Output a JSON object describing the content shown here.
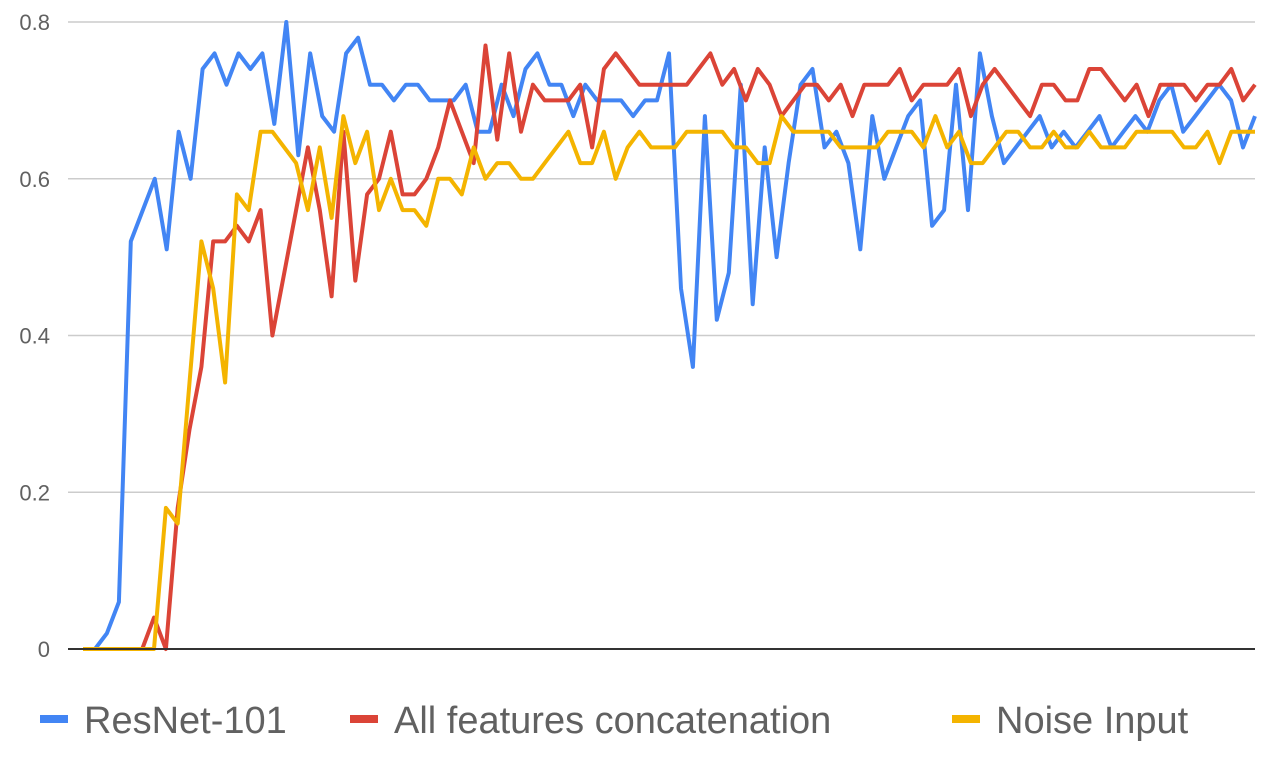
{
  "chart_data": {
    "type": "line",
    "title": "",
    "xlabel": "",
    "ylabel": "",
    "ylim": [
      0,
      0.8
    ],
    "yticks": [
      "0",
      "0.2",
      "0.4",
      "0.6",
      "0.8"
    ],
    "grid": true,
    "legend_position": "bottom",
    "series": [
      {
        "name": "ResNet-101",
        "color": "#4285F4",
        "values": [
          0,
          0,
          0.02,
          0.06,
          0.52,
          0.56,
          0.6,
          0.51,
          0.66,
          0.6,
          0.74,
          0.76,
          0.72,
          0.76,
          0.74,
          0.76,
          0.67,
          0.8,
          0.63,
          0.76,
          0.68,
          0.66,
          0.76,
          0.78,
          0.72,
          0.72,
          0.7,
          0.72,
          0.72,
          0.7,
          0.7,
          0.7,
          0.72,
          0.66,
          0.66,
          0.72,
          0.68,
          0.74,
          0.76,
          0.72,
          0.72,
          0.68,
          0.72,
          0.7,
          0.7,
          0.7,
          0.68,
          0.7,
          0.7,
          0.76,
          0.46,
          0.36,
          0.68,
          0.42,
          0.48,
          0.72,
          0.44,
          0.64,
          0.5,
          0.62,
          0.72,
          0.74,
          0.64,
          0.66,
          0.62,
          0.51,
          0.68,
          0.6,
          0.64,
          0.68,
          0.7,
          0.54,
          0.56,
          0.72,
          0.56,
          0.76,
          0.68,
          0.62,
          0.64,
          0.66,
          0.68,
          0.64,
          0.66,
          0.64,
          0.66,
          0.68,
          0.64,
          0.66,
          0.68,
          0.66,
          0.7,
          0.72,
          0.66,
          0.68,
          0.7,
          0.72,
          0.7,
          0.64,
          0.68
        ]
      },
      {
        "name": "All features concatenation",
        "color": "#DB4437",
        "values": [
          0,
          0,
          0,
          0,
          0,
          0,
          0.04,
          0,
          0.18,
          0.28,
          0.36,
          0.52,
          0.52,
          0.54,
          0.52,
          0.56,
          0.4,
          0.48,
          0.56,
          0.64,
          0.56,
          0.45,
          0.66,
          0.47,
          0.58,
          0.6,
          0.66,
          0.58,
          0.58,
          0.6,
          0.64,
          0.7,
          0.66,
          0.62,
          0.77,
          0.65,
          0.76,
          0.66,
          0.72,
          0.7,
          0.7,
          0.7,
          0.72,
          0.64,
          0.74,
          0.76,
          0.74,
          0.72,
          0.72,
          0.72,
          0.72,
          0.72,
          0.74,
          0.76,
          0.72,
          0.74,
          0.7,
          0.74,
          0.72,
          0.68,
          0.7,
          0.72,
          0.72,
          0.7,
          0.72,
          0.68,
          0.72,
          0.72,
          0.72,
          0.74,
          0.7,
          0.72,
          0.72,
          0.72,
          0.74,
          0.68,
          0.72,
          0.74,
          0.72,
          0.7,
          0.68,
          0.72,
          0.72,
          0.7,
          0.7,
          0.74,
          0.74,
          0.72,
          0.7,
          0.72,
          0.68,
          0.72,
          0.72,
          0.72,
          0.7,
          0.72,
          0.72,
          0.74,
          0.7,
          0.72
        ]
      },
      {
        "name": "Noise Input",
        "color": "#F4B400",
        "values": [
          0,
          0,
          0,
          0,
          0,
          0,
          0,
          0.18,
          0.16,
          0.34,
          0.52,
          0.46,
          0.34,
          0.58,
          0.56,
          0.66,
          0.66,
          0.64,
          0.62,
          0.56,
          0.64,
          0.55,
          0.68,
          0.62,
          0.66,
          0.56,
          0.6,
          0.56,
          0.56,
          0.54,
          0.6,
          0.6,
          0.58,
          0.64,
          0.6,
          0.62,
          0.62,
          0.6,
          0.6,
          0.62,
          0.64,
          0.66,
          0.62,
          0.62,
          0.66,
          0.6,
          0.64,
          0.66,
          0.64,
          0.64,
          0.64,
          0.66,
          0.66,
          0.66,
          0.66,
          0.64,
          0.64,
          0.62,
          0.62,
          0.68,
          0.66,
          0.66,
          0.66,
          0.66,
          0.64,
          0.64,
          0.64,
          0.64,
          0.66,
          0.66,
          0.66,
          0.64,
          0.68,
          0.64,
          0.66,
          0.62,
          0.62,
          0.64,
          0.66,
          0.66,
          0.64,
          0.64,
          0.66,
          0.64,
          0.64,
          0.66,
          0.64,
          0.64,
          0.64,
          0.66,
          0.66,
          0.66,
          0.66,
          0.64,
          0.64,
          0.66,
          0.62,
          0.66,
          0.66,
          0.66
        ]
      }
    ]
  }
}
